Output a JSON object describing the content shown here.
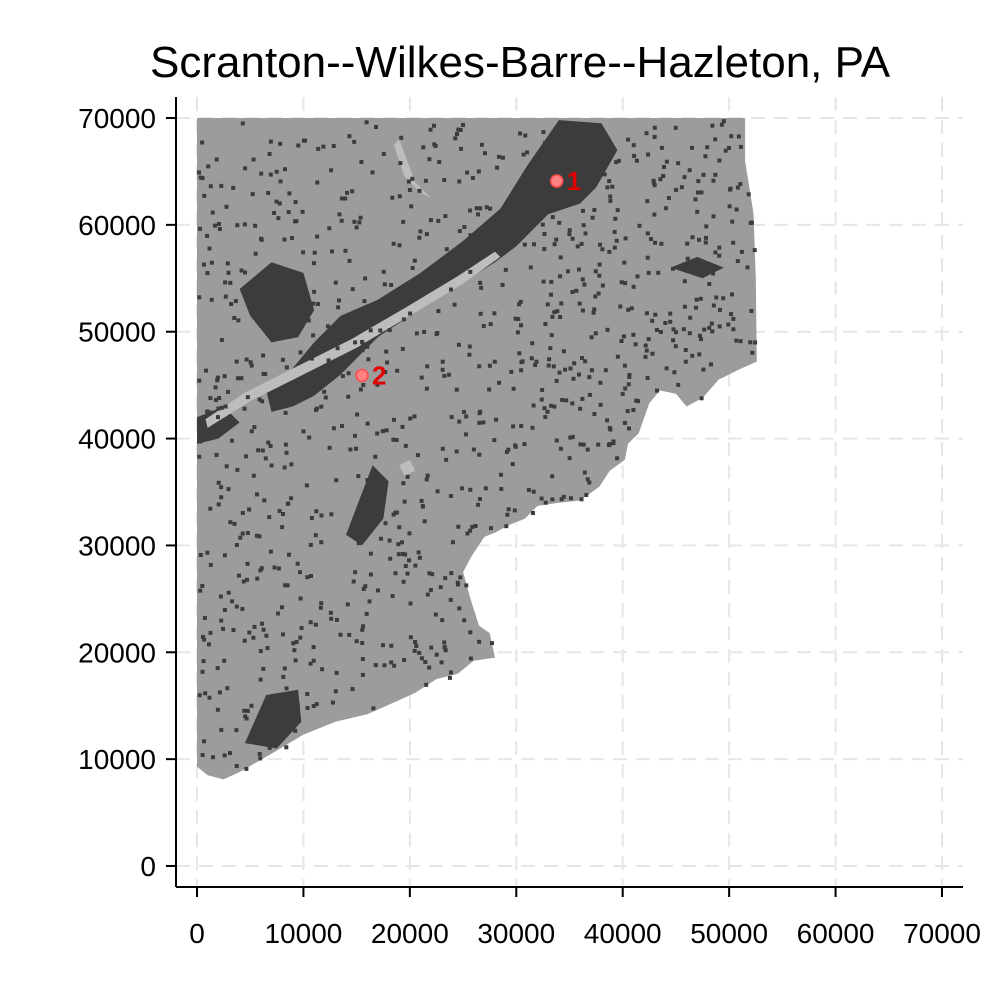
{
  "title": "Scranton--Wilkes-Barre--Hazleton, PA",
  "chart_data": {
    "type": "map",
    "title": "Scranton--Wilkes-Barre--Hazleton, PA",
    "xlabel": "",
    "ylabel": "",
    "xlim": [
      -2000,
      71000
    ],
    "ylim": [
      -2000,
      72000
    ],
    "x_ticks": [
      0,
      10000,
      20000,
      30000,
      40000,
      50000,
      60000,
      70000
    ],
    "y_ticks": [
      0,
      10000,
      20000,
      30000,
      40000,
      50000,
      60000,
      70000
    ],
    "grid": true,
    "colors": {
      "region_fill": "#9c9c9c",
      "urban_fill": "#3c3c3c",
      "water_fill": "#bdbdbd",
      "marker_fill": "#ff8080",
      "marker_label": "#e00000",
      "grid": "#e6e6e6"
    },
    "region_outline": [
      [
        0,
        70000
      ],
      [
        51500,
        70000
      ],
      [
        51500,
        66000
      ],
      [
        52300,
        61000
      ],
      [
        52500,
        55000
      ],
      [
        52600,
        47200
      ],
      [
        51000,
        46500
      ],
      [
        49000,
        45500
      ],
      [
        47500,
        43800
      ],
      [
        46000,
        43000
      ],
      [
        45000,
        44200
      ],
      [
        43500,
        44500
      ],
      [
        42500,
        43300
      ],
      [
        41500,
        40500
      ],
      [
        40500,
        39500
      ],
      [
        40200,
        38000
      ],
      [
        38800,
        37000
      ],
      [
        37800,
        35500
      ],
      [
        36000,
        34200
      ],
      [
        34000,
        34000
      ],
      [
        32000,
        33700
      ],
      [
        30800,
        32500
      ],
      [
        29500,
        32000
      ],
      [
        28000,
        31200
      ],
      [
        27000,
        30800
      ],
      [
        25800,
        29000
      ],
      [
        25000,
        27500
      ],
      [
        25700,
        25000
      ],
      [
        26500,
        22500
      ],
      [
        27500,
        21800
      ],
      [
        28000,
        19500
      ],
      [
        26000,
        19200
      ],
      [
        24500,
        18000
      ],
      [
        22500,
        17500
      ],
      [
        20500,
        16200
      ],
      [
        18500,
        15300
      ],
      [
        16000,
        14200
      ],
      [
        13000,
        13500
      ],
      [
        10000,
        12300
      ],
      [
        7000,
        10500
      ],
      [
        4000,
        8800
      ],
      [
        2500,
        8100
      ],
      [
        1000,
        8500
      ],
      [
        0,
        9300
      ]
    ],
    "urban_areas": [
      [
        [
          31000,
          65500
        ],
        [
          34000,
          69800
        ],
        [
          38000,
          69500
        ],
        [
          39500,
          67000
        ],
        [
          37500,
          63500
        ],
        [
          36000,
          62000
        ],
        [
          33000,
          61000
        ],
        [
          30000,
          58000
        ],
        [
          28000,
          56500
        ],
        [
          24000,
          54000
        ],
        [
          20000,
          51500
        ],
        [
          17000,
          49500
        ],
        [
          15000,
          47500
        ],
        [
          13500,
          46000
        ],
        [
          11000,
          44000
        ],
        [
          9000,
          43000
        ],
        [
          7000,
          42500
        ],
        [
          6500,
          44500
        ],
        [
          8500,
          46000
        ],
        [
          11000,
          49000
        ],
        [
          13500,
          51500
        ],
        [
          17000,
          53000
        ],
        [
          21000,
          55500
        ],
        [
          25000,
          58500
        ],
        [
          28500,
          61500
        ]
      ],
      [
        [
          4000,
          54000
        ],
        [
          7000,
          56500
        ],
        [
          10000,
          55500
        ],
        [
          11000,
          52000
        ],
        [
          9500,
          49500
        ],
        [
          7000,
          49000
        ],
        [
          5000,
          51500
        ]
      ],
      [
        [
          14000,
          31000
        ],
        [
          16500,
          37500
        ],
        [
          18000,
          36000
        ],
        [
          17500,
          32500
        ],
        [
          15500,
          30000
        ]
      ],
      [
        [
          4500,
          11500
        ],
        [
          6500,
          16000
        ],
        [
          9500,
          16500
        ],
        [
          9800,
          13500
        ],
        [
          7500,
          11000
        ]
      ],
      [
        [
          0,
          42000
        ],
        [
          2500,
          43000
        ],
        [
          4000,
          41500
        ],
        [
          2000,
          40000
        ],
        [
          0,
          39500
        ]
      ],
      [
        [
          44500,
          56000
        ],
        [
          47000,
          57000
        ],
        [
          49500,
          56000
        ],
        [
          47500,
          55000
        ]
      ]
    ],
    "water_areas": [
      [
        [
          1000,
          41000
        ],
        [
          5000,
          43500
        ],
        [
          10000,
          46000
        ],
        [
          15000,
          48500
        ],
        [
          20000,
          51500
        ],
        [
          25000,
          54500
        ],
        [
          28500,
          57000
        ],
        [
          28000,
          57500
        ],
        [
          24500,
          55200
        ],
        [
          19500,
          52200
        ],
        [
          14500,
          49300
        ],
        [
          9500,
          46800
        ],
        [
          4500,
          44300
        ],
        [
          800,
          41800
        ]
      ],
      [
        [
          19000,
          68000
        ],
        [
          20500,
          64000
        ],
        [
          22000,
          62500
        ],
        [
          21000,
          63000
        ],
        [
          19500,
          64500
        ],
        [
          18500,
          67500
        ]
      ],
      [
        [
          19000,
          37500
        ],
        [
          20000,
          38000
        ],
        [
          20500,
          37000
        ],
        [
          19500,
          36500
        ]
      ]
    ],
    "points": [
      {
        "label": "1",
        "x": 33800,
        "y": 64100
      },
      {
        "label": "2",
        "x": 15500,
        "y": 45900
      }
    ]
  }
}
